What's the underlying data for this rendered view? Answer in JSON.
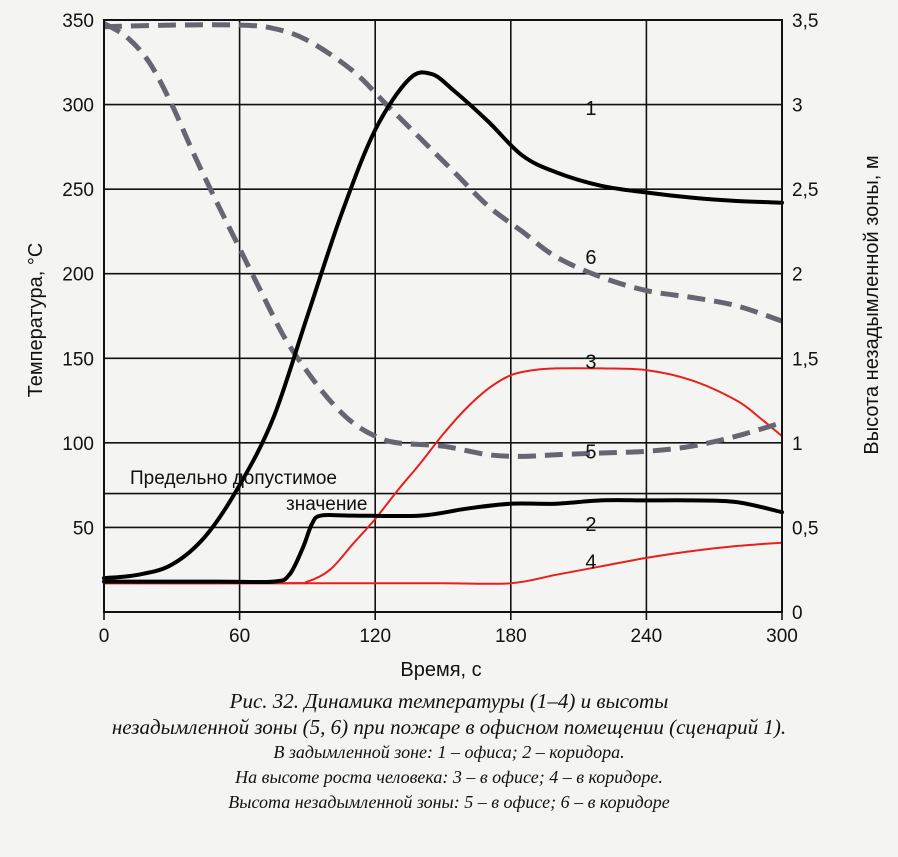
{
  "chart_data": {
    "type": "line",
    "xlabel": "Время, с",
    "ylabel_left": "Температура, °С",
    "ylabel_right": "Высота незадымленной зоны, м",
    "xlim": [
      0,
      300
    ],
    "ylim_left": [
      0,
      350
    ],
    "ylim_right": [
      0,
      3.5
    ],
    "x_ticks": [
      "0",
      "60",
      "120",
      "180",
      "240",
      "300"
    ],
    "y_left_ticks": [
      "50",
      "100",
      "150",
      "200",
      "250",
      "300",
      "350"
    ],
    "y_right_ticks": [
      "0",
      "0,5",
      "1",
      "1,5",
      "2",
      "2,5",
      "3",
      "3,5"
    ],
    "grid": true,
    "threshold": {
      "value": 70,
      "label_line1": "Предельно допустимое",
      "label_line2": "значение"
    },
    "series": [
      {
        "name": "1",
        "axis": "left",
        "color": "#000000",
        "style": "solid",
        "width": 4,
        "label": {
          "x": 213,
          "y": 298
        },
        "points": [
          [
            0,
            20
          ],
          [
            15,
            22
          ],
          [
            30,
            28
          ],
          [
            45,
            45
          ],
          [
            60,
            75
          ],
          [
            75,
            115
          ],
          [
            90,
            175
          ],
          [
            105,
            235
          ],
          [
            120,
            285
          ],
          [
            135,
            315
          ],
          [
            145,
            318
          ],
          [
            155,
            308
          ],
          [
            170,
            290
          ],
          [
            185,
            270
          ],
          [
            200,
            260
          ],
          [
            220,
            252
          ],
          [
            240,
            248
          ],
          [
            260,
            245
          ],
          [
            280,
            243
          ],
          [
            300,
            242
          ]
        ]
      },
      {
        "name": "2",
        "axis": "left",
        "color": "#000000",
        "style": "solid",
        "width": 4,
        "label": {
          "x": 213,
          "y": 52
        },
        "points": [
          [
            0,
            18
          ],
          [
            50,
            18
          ],
          [
            75,
            18
          ],
          [
            82,
            22
          ],
          [
            88,
            38
          ],
          [
            92,
            52
          ],
          [
            96,
            57
          ],
          [
            110,
            57
          ],
          [
            140,
            57
          ],
          [
            160,
            61
          ],
          [
            180,
            64
          ],
          [
            200,
            64
          ],
          [
            220,
            66
          ],
          [
            240,
            66
          ],
          [
            260,
            66
          ],
          [
            280,
            65
          ],
          [
            300,
            59
          ]
        ]
      },
      {
        "name": "3",
        "axis": "left",
        "color": "#e8201c",
        "style": "solid",
        "width": 2,
        "label": {
          "x": 213,
          "y": 148
        },
        "points": [
          [
            0,
            17
          ],
          [
            80,
            17
          ],
          [
            90,
            18
          ],
          [
            100,
            25
          ],
          [
            110,
            40
          ],
          [
            120,
            55
          ],
          [
            130,
            72
          ],
          [
            140,
            88
          ],
          [
            150,
            105
          ],
          [
            160,
            120
          ],
          [
            170,
            132
          ],
          [
            180,
            140
          ],
          [
            190,
            143
          ],
          [
            200,
            144
          ],
          [
            220,
            144
          ],
          [
            240,
            143
          ],
          [
            260,
            137
          ],
          [
            280,
            125
          ],
          [
            290,
            115
          ],
          [
            300,
            104
          ]
        ]
      },
      {
        "name": "4",
        "axis": "left",
        "color": "#e8201c",
        "style": "solid",
        "width": 2,
        "label": {
          "x": 213,
          "y": 30
        },
        "points": [
          [
            0,
            17
          ],
          [
            100,
            17
          ],
          [
            150,
            17
          ],
          [
            180,
            17
          ],
          [
            200,
            22
          ],
          [
            220,
            27
          ],
          [
            240,
            32
          ],
          [
            260,
            36
          ],
          [
            280,
            39
          ],
          [
            300,
            41
          ]
        ]
      },
      {
        "name": "5",
        "axis": "right",
        "color": "#666670",
        "style": "dashed",
        "width": 5,
        "label": {
          "x": 213,
          "y": 0.95
        },
        "points": [
          [
            0,
            3.48
          ],
          [
            10,
            3.4
          ],
          [
            20,
            3.25
          ],
          [
            30,
            3.0
          ],
          [
            40,
            2.7
          ],
          [
            50,
            2.42
          ],
          [
            60,
            2.15
          ],
          [
            70,
            1.88
          ],
          [
            80,
            1.62
          ],
          [
            90,
            1.42
          ],
          [
            100,
            1.25
          ],
          [
            110,
            1.12
          ],
          [
            120,
            1.04
          ],
          [
            130,
            1.0
          ],
          [
            150,
            0.98
          ],
          [
            170,
            0.93
          ],
          [
            185,
            0.92
          ],
          [
            200,
            0.93
          ],
          [
            220,
            0.94
          ],
          [
            240,
            0.95
          ],
          [
            260,
            0.98
          ],
          [
            280,
            1.04
          ],
          [
            300,
            1.12
          ]
        ]
      },
      {
        "name": "6",
        "axis": "right",
        "color": "#666670",
        "style": "dashed",
        "width": 5,
        "label": {
          "x": 213,
          "y": 2.1
        },
        "points": [
          [
            0,
            3.46
          ],
          [
            30,
            3.47
          ],
          [
            60,
            3.47
          ],
          [
            75,
            3.45
          ],
          [
            90,
            3.38
          ],
          [
            110,
            3.2
          ],
          [
            125,
            3.0
          ],
          [
            140,
            2.8
          ],
          [
            155,
            2.6
          ],
          [
            170,
            2.4
          ],
          [
            185,
            2.25
          ],
          [
            200,
            2.1
          ],
          [
            220,
            1.98
          ],
          [
            240,
            1.9
          ],
          [
            260,
            1.86
          ],
          [
            280,
            1.81
          ],
          [
            300,
            1.72
          ]
        ]
      }
    ]
  },
  "caption": {
    "title_line1": "Рис. 32. Динамика температуры (1–4) и высоты",
    "title_line2": "незадымленной зоны (5, 6) при пожаре в офисном помещении (сценарий 1).",
    "line3": "В задымленной зоне: 1 – офиса; 2 – коридора.",
    "line4": "На высоте роста человека: 3 – в офисе; 4 – в коридоре.",
    "line5": "Высота незадымленной зоны: 5 – в офисе; 6 – в коридоре"
  }
}
